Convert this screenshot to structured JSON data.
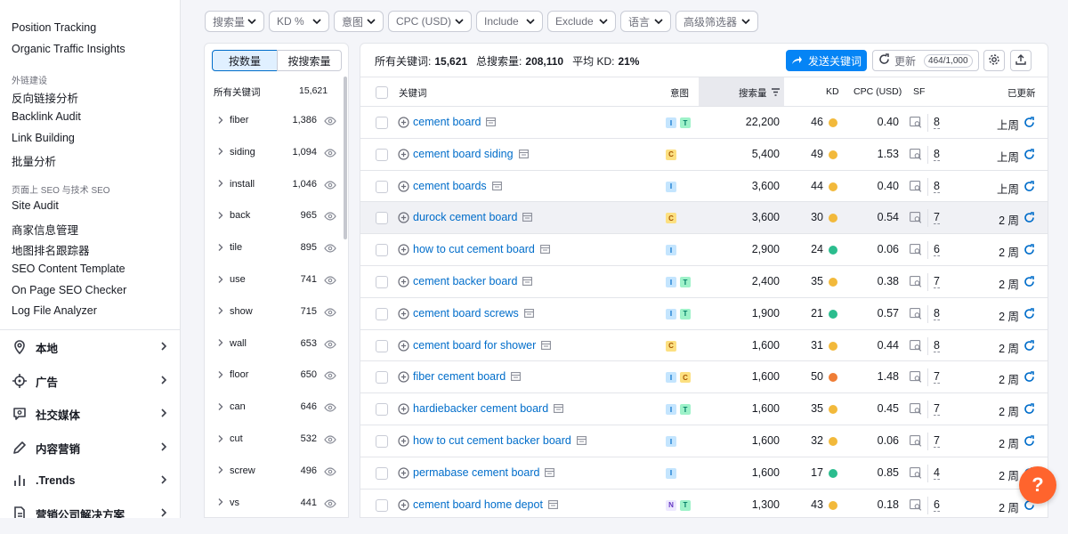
{
  "sidebar": {
    "links_top": [
      "Position Tracking",
      "Organic Traffic Insights"
    ],
    "section_backlinks": "外链建设",
    "links_backlinks": [
      "反向链接分析",
      "Backlink Audit",
      "Link Building",
      "批量分析"
    ],
    "section_onpage": "页面上 SEO 与技术 SEO",
    "links_onpage": [
      "Site Audit",
      "商家信息管理",
      "地图排名跟踪器",
      "SEO Content Template",
      "On Page SEO Checker",
      "Log File Analyzer"
    ],
    "categories": [
      {
        "label": "本地",
        "icon": "location-pin-icon"
      },
      {
        "label": "广告",
        "icon": "crosshair-icon"
      },
      {
        "label": "社交媒体",
        "icon": "chat-bubble-icon"
      },
      {
        "label": "内容营销",
        "icon": "pencil-icon"
      },
      {
        "label": ".Trends",
        "icon": "bar-chart-icon"
      },
      {
        "label": "营销公司解决方案",
        "icon": "document-icon"
      }
    ]
  },
  "filters": [
    "搜索量",
    "KD %",
    "意图",
    "CPC (USD)",
    "Include",
    "Exclude",
    "语言",
    "高级筛选器"
  ],
  "groups": {
    "toggle": [
      "按数量",
      "按搜索量"
    ],
    "header_label": "所有关键词",
    "header_count": "15,621",
    "items": [
      {
        "word": "fiber",
        "count": "1,386"
      },
      {
        "word": "siding",
        "count": "1,094"
      },
      {
        "word": "install",
        "count": "1,046"
      },
      {
        "word": "back",
        "count": "965"
      },
      {
        "word": "tile",
        "count": "895"
      },
      {
        "word": "use",
        "count": "741"
      },
      {
        "word": "show",
        "count": "715"
      },
      {
        "word": "wall",
        "count": "653"
      },
      {
        "word": "floor",
        "count": "650"
      },
      {
        "word": "can",
        "count": "646"
      },
      {
        "word": "cut",
        "count": "532"
      },
      {
        "word": "screw",
        "count": "496"
      },
      {
        "word": "vs",
        "count": "441"
      }
    ]
  },
  "summary": {
    "all_label": "所有关键词:",
    "all_value": "15,621",
    "volume_label": "总搜索量:",
    "volume_value": "208,110",
    "kd_label": "平均 KD:",
    "kd_value": "21%",
    "send_button": "发送关键词",
    "update_button": "更新",
    "update_quota": "464/1,000"
  },
  "columns": {
    "keyword": "关键词",
    "intent": "意图",
    "volume": "搜索量",
    "kd": "KD",
    "cpc": "CPC (USD)",
    "sf": "SF",
    "updated": "已更新"
  },
  "kd_colors": {
    "easy": "#2bbd8e",
    "medium": "#f2b93b",
    "hard": "#ef7d36"
  },
  "rows": [
    {
      "keyword": "cement board",
      "intents": [
        "I",
        "T"
      ],
      "volume": "22,200",
      "kd": "46",
      "kd_level": "medium",
      "cpc": "0.40",
      "sf": "8",
      "updated": "上周"
    },
    {
      "keyword": "cement board siding",
      "intents": [
        "C"
      ],
      "volume": "5,400",
      "kd": "49",
      "kd_level": "medium",
      "cpc": "1.53",
      "sf": "8",
      "updated": "上周"
    },
    {
      "keyword": "cement boards",
      "intents": [
        "I"
      ],
      "volume": "3,600",
      "kd": "44",
      "kd_level": "medium",
      "cpc": "0.40",
      "sf": "8",
      "updated": "上周"
    },
    {
      "keyword": "durock cement board",
      "intents": [
        "C"
      ],
      "volume": "3,600",
      "kd": "30",
      "kd_level": "medium",
      "cpc": "0.54",
      "sf": "7",
      "updated": "2 周"
    },
    {
      "keyword": "how to cut cement board",
      "intents": [
        "I"
      ],
      "volume": "2,900",
      "kd": "24",
      "kd_level": "easy",
      "cpc": "0.06",
      "sf": "6",
      "updated": "2 周"
    },
    {
      "keyword": "cement backer board",
      "intents": [
        "I",
        "T"
      ],
      "volume": "2,400",
      "kd": "35",
      "kd_level": "medium",
      "cpc": "0.38",
      "sf": "7",
      "updated": "2 周"
    },
    {
      "keyword": "cement board screws",
      "intents": [
        "I",
        "T"
      ],
      "volume": "1,900",
      "kd": "21",
      "kd_level": "easy",
      "cpc": "0.57",
      "sf": "8",
      "updated": "2 周"
    },
    {
      "keyword": "cement board for shower",
      "intents": [
        "C"
      ],
      "volume": "1,600",
      "kd": "31",
      "kd_level": "medium",
      "cpc": "0.44",
      "sf": "8",
      "updated": "2 周"
    },
    {
      "keyword": "fiber cement board",
      "intents": [
        "I",
        "C"
      ],
      "volume": "1,600",
      "kd": "50",
      "kd_level": "hard",
      "cpc": "1.48",
      "sf": "7",
      "updated": "2 周"
    },
    {
      "keyword": "hardiebacker cement board",
      "intents": [
        "I",
        "T"
      ],
      "volume": "1,600",
      "kd": "35",
      "kd_level": "medium",
      "cpc": "0.45",
      "sf": "7",
      "updated": "2 周"
    },
    {
      "keyword": "how to cut cement backer board",
      "intents": [
        "I"
      ],
      "volume": "1,600",
      "kd": "32",
      "kd_level": "medium",
      "cpc": "0.06",
      "sf": "7",
      "updated": "2 周"
    },
    {
      "keyword": "permabase cement board",
      "intents": [
        "I"
      ],
      "volume": "1,600",
      "kd": "17",
      "kd_level": "easy",
      "cpc": "0.85",
      "sf": "4",
      "updated": "2 周"
    },
    {
      "keyword": "cement board home depot",
      "intents": [
        "N",
        "T"
      ],
      "volume": "1,300",
      "kd": "43",
      "kd_level": "medium",
      "cpc": "0.18",
      "sf": "6",
      "updated": "2 周"
    }
  ],
  "help_label": "?"
}
